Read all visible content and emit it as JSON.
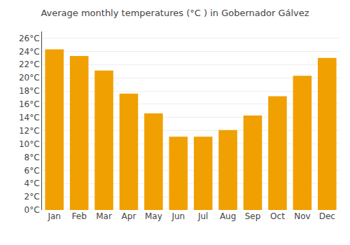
{
  "chart_data": {
    "type": "bar",
    "title": "Average monthly temperatures (°C ) in Gobernador Gálvez",
    "categories": [
      "Jan",
      "Feb",
      "Mar",
      "Apr",
      "May",
      "Jun",
      "Jul",
      "Aug",
      "Sep",
      "Oct",
      "Nov",
      "Dec"
    ],
    "values": [
      24.3,
      23.3,
      21.1,
      17.6,
      14.6,
      11.1,
      11.1,
      12.1,
      14.3,
      17.2,
      20.3,
      23.0
    ],
    "color": "#F0A000",
    "ylim": [
      0,
      27
    ],
    "yticks": [
      {
        "value": 0,
        "label": "0°C"
      },
      {
        "value": 2,
        "label": "2°C"
      },
      {
        "value": 4,
        "label": "4°C"
      },
      {
        "value": 6,
        "label": "6°C"
      },
      {
        "value": 8,
        "label": "8°C"
      },
      {
        "value": 10,
        "label": "10°C"
      },
      {
        "value": 12,
        "label": "12°C"
      },
      {
        "value": 14,
        "label": "14°C"
      },
      {
        "value": 16,
        "label": "16°C"
      },
      {
        "value": 18,
        "label": "18°C"
      },
      {
        "value": 20,
        "label": "20°C"
      },
      {
        "value": 22,
        "label": "22°C"
      },
      {
        "value": 24,
        "label": "24°C"
      },
      {
        "value": 26,
        "label": "26°C"
      }
    ],
    "grid": true
  }
}
